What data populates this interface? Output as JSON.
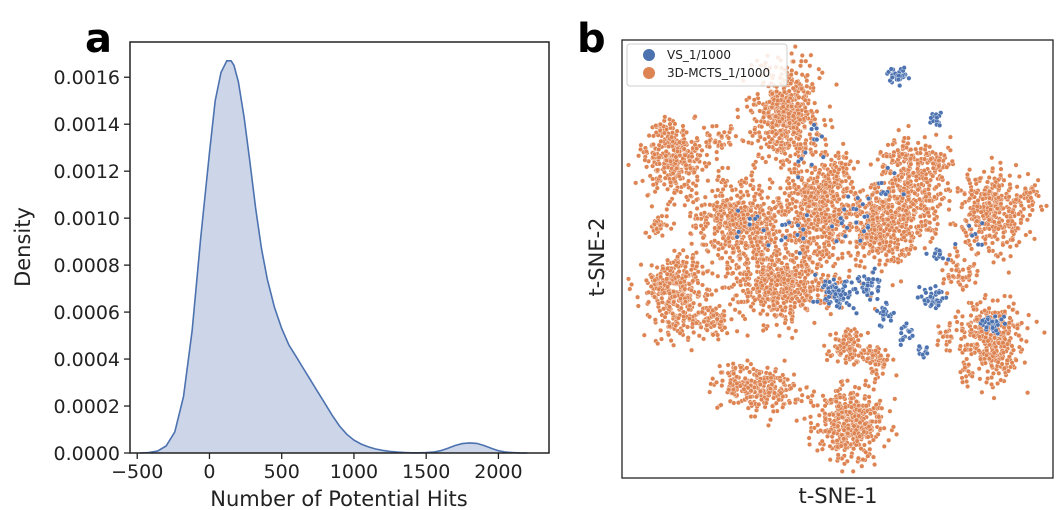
{
  "chart_data": [
    {
      "panel": "a",
      "type": "area",
      "title": "",
      "xlabel": "Number of Potential Hits",
      "ylabel": "Density",
      "xlim": [
        -550,
        2350
      ],
      "ylim": [
        0,
        0.00175
      ],
      "xticks": [
        -500,
        0,
        500,
        1000,
        1500,
        2000
      ],
      "xtick_labels": [
        "−500",
        "0",
        "500",
        "1000",
        "1500",
        "2000"
      ],
      "yticks": [
        0,
        0.0002,
        0.0004,
        0.0006,
        0.0008,
        0.001,
        0.0012,
        0.0014,
        0.0016
      ],
      "ytick_labels": [
        "0.0000",
        "0.0002",
        "0.0004",
        "0.0006",
        "0.0008",
        "0.0010",
        "0.0012",
        "0.0014",
        "0.0016"
      ],
      "grid": false,
      "fill_color": "#cdd6e8",
      "line_color": "#4c72b0",
      "x": [
        -480,
        -420,
        -360,
        -300,
        -240,
        -180,
        -120,
        -60,
        0,
        40,
        80,
        120,
        150,
        170,
        200,
        240,
        280,
        320,
        360,
        400,
        450,
        500,
        550,
        600,
        650,
        700,
        750,
        800,
        850,
        900,
        950,
        1000,
        1050,
        1100,
        1150,
        1200,
        1250,
        1300,
        1350,
        1400,
        1450,
        1500,
        1550,
        1600,
        1650,
        1700,
        1750,
        1800,
        1850,
        1900,
        1950,
        2000,
        2050,
        2100,
        2150,
        2200
      ],
      "y": [
        0.0,
        2e-06,
        8e-06,
        3e-05,
        9e-05,
        0.00024,
        0.00052,
        0.00092,
        0.00128,
        0.0015,
        0.00162,
        0.00167,
        0.00167,
        0.00165,
        0.00158,
        0.00143,
        0.00124,
        0.00104,
        0.00087,
        0.00074,
        0.00062,
        0.00053,
        0.00046,
        0.00041,
        0.00036,
        0.00031,
        0.00026,
        0.00021,
        0.00016,
        0.000115,
        8e-05,
        5.5e-05,
        3.8e-05,
        2.6e-05,
        1.7e-05,
        1.1e-05,
        7e-06,
        4e-06,
        2e-06,
        1e-06,
        8e-07,
        1.5e-06,
        4e-06,
        1e-05,
        2e-05,
        3.2e-05,
        4e-05,
        4.3e-05,
        4.1e-05,
        3.2e-05,
        2e-05,
        1e-05,
        4e-06,
        1.5e-06,
        4e-07,
        0.0
      ]
    },
    {
      "panel": "b",
      "type": "scatter",
      "title": "",
      "xlabel": "t-SNE-1",
      "ylabel": "t-SNE-2",
      "xlim": [
        0,
        100
      ],
      "ylim": [
        0,
        100
      ],
      "axis_ticks": false,
      "grid": false,
      "legend_position": "top-left",
      "point_edge_color": "#ffffff",
      "series": [
        {
          "name": "VS_1/1000",
          "color": "#4c72b0",
          "clusters": [
            {
              "cx": 64,
              "cy": 92,
              "sx": 1.2,
              "sy": 0.9,
              "n": 35
            },
            {
              "cx": 73,
              "cy": 82,
              "sx": 0.7,
              "sy": 0.9,
              "n": 18
            },
            {
              "cx": 50,
              "cy": 42,
              "sx": 2.0,
              "sy": 1.8,
              "n": 70
            },
            {
              "cx": 57,
              "cy": 44,
              "sx": 1.6,
              "sy": 1.6,
              "n": 45
            },
            {
              "cx": 72,
              "cy": 41,
              "sx": 1.4,
              "sy": 1.2,
              "n": 40
            },
            {
              "cx": 86,
              "cy": 35,
              "sx": 1.5,
              "sy": 1.0,
              "n": 30
            },
            {
              "cx": 61,
              "cy": 38,
              "sx": 1.0,
              "sy": 1.2,
              "n": 22
            },
            {
              "cx": 66,
              "cy": 33,
              "sx": 1.0,
              "sy": 1.5,
              "n": 18
            },
            {
              "cx": 70,
              "cy": 29,
              "sx": 0.7,
              "sy": 0.7,
              "n": 10
            },
            {
              "cx": 73,
              "cy": 51,
              "sx": 1.2,
              "sy": 1.0,
              "n": 12
            },
            {
              "cx": 52,
              "cy": 59,
              "sx": 4.0,
              "sy": 3.0,
              "n": 20
            },
            {
              "cx": 40,
              "cy": 55,
              "sx": 3.0,
              "sy": 3.0,
              "n": 12
            },
            {
              "cx": 61,
              "cy": 65,
              "sx": 2.0,
              "sy": 2.0,
              "n": 10
            },
            {
              "cx": 44,
              "cy": 77,
              "sx": 2.0,
              "sy": 2.0,
              "n": 6
            },
            {
              "cx": 30,
              "cy": 57,
              "sx": 2.0,
              "sy": 2.0,
              "n": 8
            },
            {
              "cx": 42,
              "cy": 73,
              "sx": 2.0,
              "sy": 2.0,
              "n": 6
            },
            {
              "cx": 82,
              "cy": 55,
              "sx": 2.0,
              "sy": 2.0,
              "n": 8
            }
          ]
        },
        {
          "name": "3D-MCTS_1/1000",
          "color": "#dd8452",
          "clusters": [
            {
              "cx": 38,
              "cy": 83,
              "sx": 3.8,
              "sy": 5.5,
              "n": 560
            },
            {
              "cx": 12,
              "cy": 73,
              "sx": 3.5,
              "sy": 4.0,
              "n": 330
            },
            {
              "cx": 23,
              "cy": 77,
              "sx": 2.0,
              "sy": 1.8,
              "n": 40
            },
            {
              "cx": 27,
              "cy": 58,
              "sx": 5.5,
              "sy": 5.5,
              "n": 560
            },
            {
              "cx": 45,
              "cy": 61,
              "sx": 4.5,
              "sy": 6.0,
              "n": 520
            },
            {
              "cx": 59,
              "cy": 57,
              "sx": 3.5,
              "sy": 4.5,
              "n": 330
            },
            {
              "cx": 67,
              "cy": 63,
              "sx": 4.0,
              "sy": 6.0,
              "n": 380
            },
            {
              "cx": 37,
              "cy": 44,
              "sx": 5.5,
              "sy": 4.0,
              "n": 470
            },
            {
              "cx": 50,
              "cy": 70,
              "sx": 2.0,
              "sy": 2.0,
              "n": 60
            },
            {
              "cx": 86,
              "cy": 61,
              "sx": 4.0,
              "sy": 4.5,
              "n": 380
            },
            {
              "cx": 12,
              "cy": 45,
              "sx": 3.5,
              "sy": 3.0,
              "n": 220
            },
            {
              "cx": 14,
              "cy": 37,
              "sx": 3.5,
              "sy": 3.0,
              "n": 160
            },
            {
              "cx": 22,
              "cy": 36,
              "sx": 2.0,
              "sy": 2.0,
              "n": 60
            },
            {
              "cx": 86,
              "cy": 32,
              "sx": 3.5,
              "sy": 4.5,
              "n": 340
            },
            {
              "cx": 78,
              "cy": 47,
              "sx": 2.0,
              "sy": 2.0,
              "n": 50
            },
            {
              "cx": 53,
              "cy": 30,
              "sx": 2.0,
              "sy": 2.0,
              "n": 90
            },
            {
              "cx": 59,
              "cy": 27,
              "sx": 2.0,
              "sy": 2.0,
              "n": 60
            },
            {
              "cx": 33,
              "cy": 20,
              "sx": 4.5,
              "sy": 2.5,
              "n": 200
            },
            {
              "cx": 27,
              "cy": 22,
              "sx": 2.5,
              "sy": 2.0,
              "n": 70
            },
            {
              "cx": 53,
              "cy": 12,
              "sx": 4.0,
              "sy": 4.0,
              "n": 420
            },
            {
              "cx": 8,
              "cy": 58,
              "sx": 1.5,
              "sy": 1.5,
              "n": 30
            },
            {
              "cx": 94,
              "cy": 64,
              "sx": 1.5,
              "sy": 1.2,
              "n": 25
            },
            {
              "cx": 75,
              "cy": 32,
              "sx": 1.5,
              "sy": 1.5,
              "n": 22
            },
            {
              "cx": 80,
              "cy": 24,
              "sx": 1.0,
              "sy": 1.0,
              "n": 15
            },
            {
              "cx": 65,
              "cy": 74,
              "sx": 2.5,
              "sy": 2.5,
              "n": 60
            },
            {
              "cx": 72,
              "cy": 72,
              "sx": 2.0,
              "sy": 2.5,
              "n": 50
            }
          ]
        }
      ]
    }
  ],
  "panels": {
    "a": {
      "letter": "a"
    },
    "b": {
      "letter": "b"
    }
  }
}
